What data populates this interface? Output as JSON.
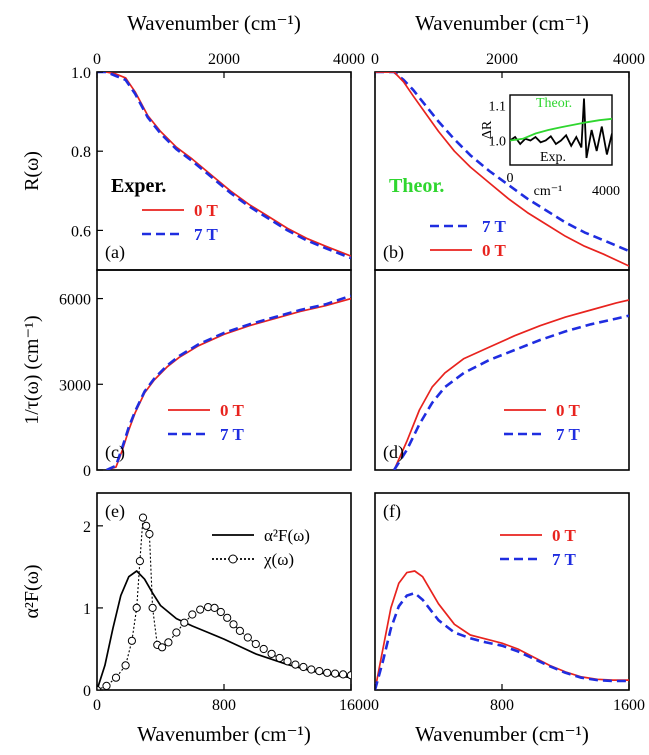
{
  "chart_data": [
    {
      "id": "a",
      "type": "line",
      "panel_label": "(a)",
      "annotation": "Exper.",
      "top_axis_title": "Wavenumber (cm⁻¹)",
      "ylabel": "R(ω)",
      "xlim": [
        0,
        4000
      ],
      "ylim": [
        0.5,
        1.0
      ],
      "xticks": [
        0,
        2000,
        4000
      ],
      "xtick_labels": [
        "0",
        "2000",
        "4000"
      ],
      "yticks": [
        0.6,
        0.8,
        1.0
      ],
      "ytick_labels": [
        "0.6",
        "0.8",
        "1.0"
      ],
      "legend_position": "lower-left",
      "series": [
        {
          "name": "0 T",
          "color": "#e8231e",
          "style": "solid",
          "x": [
            0,
            150,
            300,
            450,
            600,
            800,
            1000,
            1250,
            1500,
            1800,
            2100,
            2400,
            2700,
            3000,
            3300,
            3600,
            4000
          ],
          "y": [
            1.0,
            1.0,
            0.995,
            0.985,
            0.95,
            0.89,
            0.85,
            0.81,
            0.78,
            0.74,
            0.7,
            0.665,
            0.635,
            0.605,
            0.58,
            0.56,
            0.535
          ]
        },
        {
          "name": "7 T",
          "color": "#1f2de0",
          "style": "dashed",
          "x": [
            0,
            150,
            300,
            450,
            600,
            800,
            1000,
            1250,
            1500,
            1800,
            2100,
            2400,
            2700,
            3000,
            3300,
            3600,
            4000
          ],
          "y": [
            1.0,
            1.0,
            0.99,
            0.98,
            0.945,
            0.885,
            0.845,
            0.805,
            0.775,
            0.735,
            0.695,
            0.66,
            0.63,
            0.6,
            0.575,
            0.555,
            0.53
          ]
        }
      ]
    },
    {
      "id": "b",
      "type": "line",
      "panel_label": "(b)",
      "annotation": "Theor.",
      "annotation_color": "#2fd62f",
      "top_axis_title": "Wavenumber (cm⁻¹)",
      "xlim": [
        0,
        4000
      ],
      "ylim": [
        0.5,
        1.0
      ],
      "xticks": [
        0,
        2000,
        4000
      ],
      "xtick_labels": [
        "0",
        "2000",
        "4000"
      ],
      "legend_position": "lower-left",
      "series": [
        {
          "name": "7 T",
          "color": "#1f2de0",
          "style": "dashed",
          "x": [
            0,
            300,
            450,
            600,
            800,
            1000,
            1250,
            1500,
            1800,
            2100,
            2400,
            2700,
            3000,
            3300,
            3600,
            4000
          ],
          "y": [
            1.0,
            1.0,
            0.98,
            0.955,
            0.915,
            0.875,
            0.83,
            0.79,
            0.75,
            0.715,
            0.68,
            0.65,
            0.62,
            0.595,
            0.575,
            0.548
          ]
        },
        {
          "name": "0 T",
          "color": "#e8231e",
          "style": "solid",
          "x": [
            0,
            300,
            450,
            600,
            800,
            1000,
            1250,
            1500,
            1800,
            2100,
            2400,
            2700,
            3000,
            3300,
            3600,
            4000
          ],
          "y": [
            1.0,
            1.0,
            0.975,
            0.94,
            0.895,
            0.85,
            0.8,
            0.76,
            0.72,
            0.68,
            0.645,
            0.615,
            0.585,
            0.56,
            0.54,
            0.51
          ]
        }
      ],
      "inset": {
        "ylabel": "ΔR",
        "xlabel": "cm⁻¹",
        "xlim": [
          0,
          4000
        ],
        "ylim": [
          0.93,
          1.13
        ],
        "xtick_labels": [
          "0",
          "4000"
        ],
        "ytick_labels": [
          "1.0",
          "1.1"
        ],
        "series": [
          {
            "name": "Theor.",
            "color": "#2fd62f",
            "x": [
              0,
              500,
              1000,
              1500,
              2000,
              2500,
              3000,
              3500,
              4000
            ],
            "y": [
              1.0,
              1.005,
              1.02,
              1.03,
              1.038,
              1.045,
              1.052,
              1.058,
              1.062
            ]
          },
          {
            "name": "Exp.",
            "color": "#000000",
            "x": [
              0,
              200,
              400,
              600,
              800,
              1000,
              1200,
              1400,
              1600,
              1800,
              2000,
              2200,
              2400,
              2600,
              2800,
              2900,
              3000,
              3200,
              3400,
              3600,
              3800,
              4000
            ],
            "y": [
              1.0,
              1.01,
              0.99,
              1.005,
              1.0,
              1.01,
              0.995,
              1.0,
              1.012,
              0.99,
              1.0,
              1.015,
              0.985,
              1.01,
              0.98,
              1.12,
              0.95,
              1.03,
              0.97,
              1.04,
              0.96,
              1.02
            ]
          }
        ]
      }
    },
    {
      "id": "c",
      "type": "line",
      "panel_label": "(c)",
      "ylabel": "1/τ(ω) (cm⁻¹)",
      "xlim": [
        0,
        4000
      ],
      "ylim": [
        0,
        7000
      ],
      "yticks": [
        0,
        3000,
        6000
      ],
      "ytick_labels": [
        "0",
        "3000",
        "6000"
      ],
      "legend_position": "lower-right",
      "series": [
        {
          "name": "0 T",
          "color": "#e8231e",
          "style": "solid",
          "x": [
            150,
            300,
            400,
            500,
            600,
            750,
            900,
            1100,
            1300,
            1600,
            2000,
            2400,
            2800,
            3200,
            3600,
            4000
          ],
          "y": [
            0,
            100,
            700,
            1400,
            2000,
            2700,
            3150,
            3600,
            3950,
            4350,
            4750,
            5050,
            5300,
            5550,
            5750,
            6000
          ]
        },
        {
          "name": "7 T",
          "color": "#1f2de0",
          "style": "dashed",
          "x": [
            150,
            300,
            400,
            500,
            600,
            750,
            900,
            1100,
            1300,
            1600,
            2000,
            2400,
            2800,
            3200,
            3600,
            4000
          ],
          "y": [
            0,
            150,
            800,
            1500,
            2050,
            2750,
            3200,
            3650,
            4000,
            4400,
            4800,
            5100,
            5350,
            5600,
            5800,
            6100
          ]
        }
      ]
    },
    {
      "id": "d",
      "type": "line",
      "panel_label": "(d)",
      "xlim": [
        0,
        4000
      ],
      "ylim": [
        0,
        7000
      ],
      "legend_position": "lower-right",
      "series": [
        {
          "name": "0 T",
          "color": "#e8231e",
          "style": "solid",
          "x": [
            300,
            500,
            700,
            900,
            1100,
            1400,
            1800,
            2200,
            2600,
            3000,
            3400,
            3800,
            4000
          ],
          "y": [
            0,
            1000,
            2100,
            2900,
            3400,
            3900,
            4300,
            4700,
            5050,
            5350,
            5600,
            5850,
            5950
          ]
        },
        {
          "name": "7 T",
          "color": "#1f2de0",
          "style": "dashed",
          "x": [
            300,
            500,
            700,
            900,
            1100,
            1400,
            1800,
            2200,
            2600,
            3000,
            3400,
            3800,
            4000
          ],
          "y": [
            0,
            700,
            1600,
            2350,
            2900,
            3400,
            3850,
            4200,
            4550,
            4850,
            5100,
            5300,
            5400
          ]
        }
      ]
    },
    {
      "id": "e",
      "type": "line",
      "panel_label": "(e)",
      "xlabel": "Wavenumber (cm⁻¹)",
      "ylabel": "α²F(ω)",
      "xlim": [
        0,
        1600
      ],
      "ylim": [
        0,
        2.4
      ],
      "xticks": [
        0,
        800,
        1600
      ],
      "xtick_labels": [
        "0",
        "800",
        "1600"
      ],
      "yticks": [
        0,
        1,
        2
      ],
      "ytick_labels": [
        "0",
        "1",
        "2"
      ],
      "legend_position": "upper-right",
      "series": [
        {
          "name": "α²F(ω)",
          "color": "#000000",
          "style": "solid",
          "x": [
            0,
            50,
            100,
            150,
            200,
            250,
            300,
            350,
            400,
            500,
            600,
            700,
            800,
            900,
            1000,
            1200,
            1400,
            1600
          ],
          "y": [
            0,
            0.3,
            0.75,
            1.15,
            1.38,
            1.45,
            1.35,
            1.18,
            1.03,
            0.87,
            0.78,
            0.7,
            0.62,
            0.53,
            0.44,
            0.31,
            0.21,
            0.15
          ]
        },
        {
          "name": "χ(ω)",
          "color": "#000000",
          "style": "dotted-circles",
          "x": [
            0,
            60,
            120,
            180,
            220,
            250,
            270,
            290,
            310,
            330,
            350,
            380,
            410,
            450,
            500,
            550,
            600,
            650,
            700,
            740,
            780,
            820,
            860,
            900,
            950,
            1000,
            1050,
            1100,
            1150,
            1200,
            1250,
            1300,
            1350,
            1400,
            1450,
            1500,
            1550,
            1600
          ],
          "y": [
            0,
            0.05,
            0.15,
            0.3,
            0.6,
            1.0,
            1.57,
            2.1,
            2.0,
            1.9,
            1.0,
            0.55,
            0.52,
            0.58,
            0.7,
            0.82,
            0.92,
            0.98,
            1.01,
            1.0,
            0.95,
            0.88,
            0.8,
            0.72,
            0.64,
            0.56,
            0.5,
            0.44,
            0.39,
            0.35,
            0.31,
            0.28,
            0.25,
            0.23,
            0.21,
            0.2,
            0.19,
            0.18
          ]
        }
      ]
    },
    {
      "id": "f",
      "type": "line",
      "panel_label": "(f)",
      "xlabel": "Wavenumber (cm⁻¹)",
      "xlim": [
        0,
        1600
      ],
      "ylim": [
        0,
        2.4
      ],
      "xticks": [
        0,
        800,
        1600
      ],
      "xtick_labels": [
        "0",
        "800",
        "1600"
      ],
      "legend_position": "upper-right",
      "series": [
        {
          "name": "0 T",
          "color": "#e8231e",
          "style": "solid",
          "x": [
            0,
            50,
            100,
            150,
            200,
            250,
            300,
            400,
            500,
            600,
            700,
            800,
            900,
            1000,
            1100,
            1200,
            1300,
            1400,
            1500,
            1600
          ],
          "y": [
            0,
            0.5,
            1.0,
            1.3,
            1.43,
            1.45,
            1.38,
            1.05,
            0.8,
            0.67,
            0.62,
            0.57,
            0.5,
            0.4,
            0.3,
            0.22,
            0.16,
            0.13,
            0.12,
            0.12
          ]
        },
        {
          "name": "7 T",
          "color": "#1f2de0",
          "style": "dashed",
          "x": [
            0,
            50,
            100,
            150,
            200,
            250,
            300,
            400,
            500,
            600,
            700,
            800,
            900,
            1000,
            1100,
            1200,
            1300,
            1400,
            1500,
            1600
          ],
          "y": [
            0,
            0.35,
            0.75,
            1.02,
            1.15,
            1.18,
            1.1,
            0.85,
            0.7,
            0.63,
            0.58,
            0.54,
            0.47,
            0.38,
            0.29,
            0.21,
            0.15,
            0.12,
            0.11,
            0.11
          ]
        }
      ]
    }
  ]
}
